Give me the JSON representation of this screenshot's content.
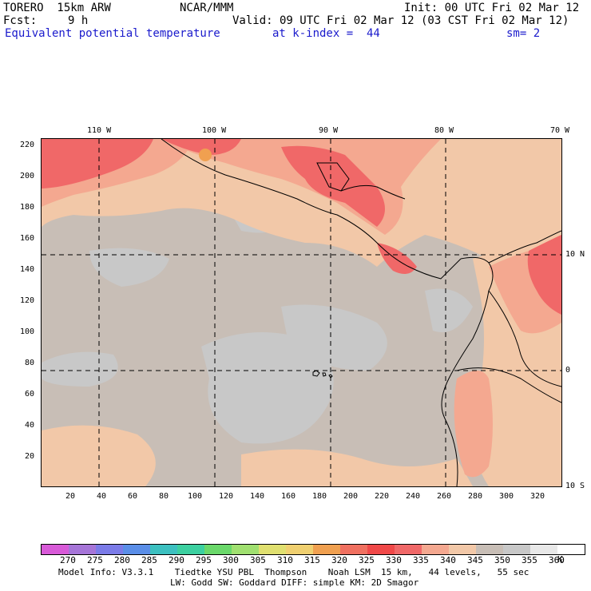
{
  "header": {
    "model": "TORERO  15km ARW",
    "center": "NCAR/MMM",
    "init": "Init: 00 UTC Fri 02 Mar 12",
    "fcst_label": "Fcst:",
    "fcst_value": "9 h",
    "valid": "Valid: 09 UTC Fri 02 Mar 12 (03 CST Fri 02 Mar 12)",
    "field": "Equivalent potential temperature",
    "level": "at k-index =  44",
    "smoothing": "sm= 2"
  },
  "map": {
    "lon_labels": [
      "110 W",
      "100 W",
      "90 W",
      "80 W",
      "70 W"
    ],
    "lat_labels": [
      "10 N",
      "0",
      "10 S"
    ],
    "y_ticks": [
      "220",
      "200",
      "180",
      "160",
      "140",
      "120",
      "100",
      "80",
      "60",
      "40",
      "20"
    ],
    "x_ticks": [
      "20",
      "40",
      "60",
      "80",
      "100",
      "120",
      "140",
      "160",
      "180",
      "200",
      "220",
      "240",
      "260",
      "280",
      "300",
      "320"
    ]
  },
  "colorbar": {
    "unit": "K",
    "levels": [
      "270",
      "275",
      "280",
      "285",
      "290",
      "295",
      "300",
      "305",
      "310",
      "315",
      "320",
      "325",
      "330",
      "335",
      "340",
      "345",
      "350",
      "355",
      "360"
    ],
    "colors": [
      "#d85ad8",
      "#a675d8",
      "#7b7be8",
      "#5a8ee8",
      "#3cc0c0",
      "#3cd0a0",
      "#6ad86a",
      "#a0e070",
      "#e0e070",
      "#f0d070",
      "#f0a050",
      "#f07060",
      "#f04848",
      "#f06868",
      "#f4a890",
      "#f2c8a8",
      "#c8beb6",
      "#c8c8c8",
      "#e8e8e8",
      "#ffffff"
    ]
  },
  "footer": {
    "line1": "Model Info: V3.3.1    Tiedtke YSU PBL  Thompson    Noah LSM  15 km,   44 levels,   55 sec",
    "line2": "LW: Godd SW: Goddard DIFF: simple KM: 2D Smagor"
  }
}
